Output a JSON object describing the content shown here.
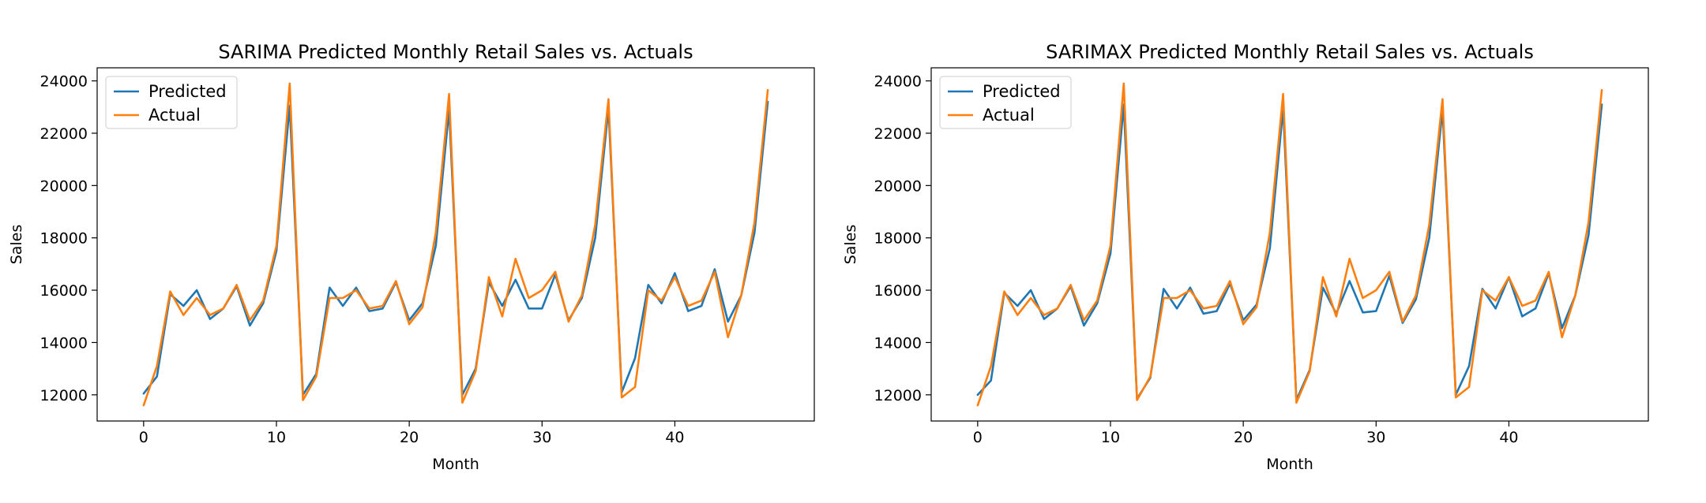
{
  "chart_data": [
    {
      "type": "line",
      "title": "SARIMA Predicted Monthly Retail Sales vs. Actuals",
      "xlabel": "Month",
      "ylabel": "Sales",
      "xlim": [
        -3.5,
        50.5
      ],
      "ylim": [
        11000,
        24500
      ],
      "xticks": [
        0,
        10,
        20,
        30,
        40
      ],
      "yticks": [
        12000,
        14000,
        16000,
        18000,
        20000,
        22000,
        24000
      ],
      "grid": false,
      "legend": "upper-left",
      "x": [
        0,
        1,
        2,
        3,
        4,
        5,
        6,
        7,
        8,
        9,
        10,
        11,
        12,
        13,
        14,
        15,
        16,
        17,
        18,
        19,
        20,
        21,
        22,
        23,
        24,
        25,
        26,
        27,
        28,
        29,
        30,
        31,
        32,
        33,
        34,
        35,
        36,
        37,
        38,
        39,
        40,
        41,
        42,
        43,
        44,
        45,
        46,
        47
      ],
      "series": [
        {
          "name": "Predicted",
          "color": "#1f77b4",
          "values": [
            12050,
            12700,
            15850,
            15400,
            16000,
            14900,
            15300,
            16150,
            14650,
            15500,
            17500,
            23050,
            12000,
            12800,
            16100,
            15400,
            16100,
            15200,
            15300,
            16300,
            14850,
            15500,
            17700,
            22900,
            12000,
            13000,
            16300,
            15400,
            16400,
            15300,
            15300,
            16600,
            14850,
            15700,
            18000,
            22950,
            12100,
            13400,
            16200,
            15500,
            16650,
            15200,
            15400,
            16800,
            14800,
            15800,
            18200,
            23200
          ]
        },
        {
          "name": "Actual",
          "color": "#ff7f0e",
          "values": [
            11600,
            13100,
            15950,
            15050,
            15700,
            15050,
            15300,
            16200,
            14850,
            15600,
            17700,
            23900,
            11800,
            12700,
            15700,
            15700,
            16000,
            15300,
            15400,
            16350,
            14700,
            15350,
            18200,
            23500,
            11700,
            12900,
            16500,
            15000,
            17200,
            15700,
            16000,
            16700,
            14800,
            15800,
            18500,
            23300,
            11900,
            12300,
            16000,
            15600,
            16500,
            15400,
            15600,
            16700,
            14200,
            15800,
            18600,
            23650
          ]
        }
      ]
    },
    {
      "type": "line",
      "title": "SARIMAX Predicted Monthly Retail Sales vs. Actuals",
      "xlabel": "Month",
      "ylabel": "Sales",
      "xlim": [
        -3.5,
        50.5
      ],
      "ylim": [
        11000,
        24500
      ],
      "xticks": [
        0,
        10,
        20,
        30,
        40
      ],
      "yticks": [
        12000,
        14000,
        16000,
        18000,
        20000,
        22000,
        24000
      ],
      "grid": false,
      "legend": "upper-left",
      "x": [
        0,
        1,
        2,
        3,
        4,
        5,
        6,
        7,
        8,
        9,
        10,
        11,
        12,
        13,
        14,
        15,
        16,
        17,
        18,
        19,
        20,
        21,
        22,
        23,
        24,
        25,
        26,
        27,
        28,
        29,
        30,
        31,
        32,
        33,
        34,
        35,
        36,
        37,
        38,
        39,
        40,
        41,
        42,
        43,
        44,
        45,
        46,
        47
      ],
      "series": [
        {
          "name": "Predicted",
          "color": "#1f77b4",
          "values": [
            12000,
            12550,
            15900,
            15400,
            16000,
            14900,
            15300,
            16150,
            14650,
            15500,
            17400,
            23100,
            11850,
            12650,
            16050,
            15300,
            16100,
            15100,
            15200,
            16250,
            14850,
            15450,
            17600,
            22950,
            11800,
            12950,
            16100,
            15100,
            16350,
            15150,
            15200,
            16550,
            14750,
            15650,
            18000,
            22900,
            12000,
            13100,
            16050,
            15300,
            16500,
            15000,
            15300,
            16650,
            14550,
            15800,
            18100,
            23100
          ]
        },
        {
          "name": "Actual",
          "color": "#ff7f0e",
          "values": [
            11600,
            13100,
            15950,
            15050,
            15700,
            15050,
            15300,
            16200,
            14850,
            15600,
            17700,
            23900,
            11800,
            12700,
            15700,
            15700,
            16000,
            15300,
            15400,
            16350,
            14700,
            15350,
            18200,
            23500,
            11700,
            12900,
            16500,
            15000,
            17200,
            15700,
            16000,
            16700,
            14800,
            15800,
            18500,
            23300,
            11900,
            12300,
            16000,
            15600,
            16500,
            15400,
            15600,
            16700,
            14200,
            15800,
            18600,
            23650
          ]
        }
      ]
    }
  ]
}
